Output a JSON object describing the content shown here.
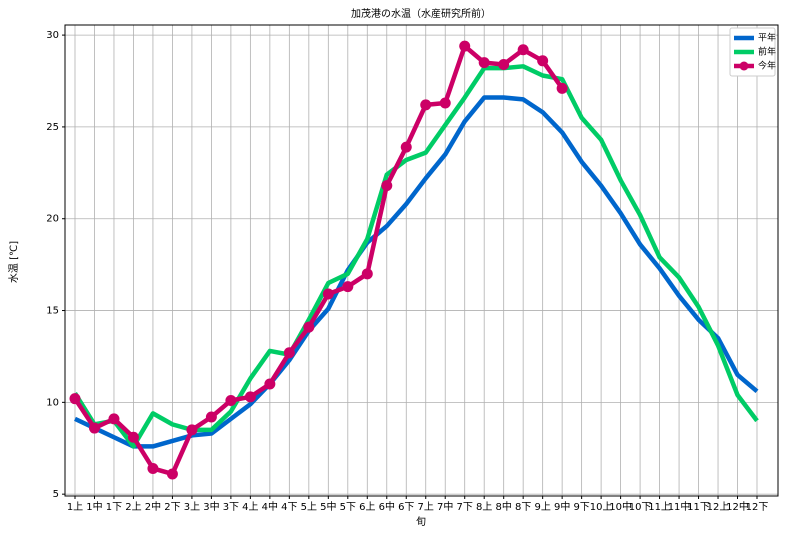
{
  "chart_data": {
    "type": "line",
    "title": "加茂港の水温（水産研究所前）",
    "xlabel": "旬",
    "ylabel": "水温 [℃]",
    "categories": [
      "1上",
      "1中",
      "1下",
      "2上",
      "2中",
      "2下",
      "3上",
      "3中",
      "3下",
      "4上",
      "4中",
      "4下",
      "5上",
      "5中",
      "5下",
      "6上",
      "6中",
      "6下",
      "7上",
      "7中",
      "7下",
      "8上",
      "8中",
      "8下",
      "9上",
      "9中",
      "9下",
      "10上",
      "10中",
      "10下",
      "11上",
      "11中",
      "11下",
      "12上",
      "12中",
      "12下"
    ],
    "series": [
      {
        "name": "平年",
        "color": "#0066cc",
        "markers": false,
        "values": [
          9.1,
          8.6,
          8.1,
          7.6,
          7.6,
          7.9,
          8.2,
          8.3,
          9.1,
          9.9,
          11.0,
          12.3,
          13.9,
          15.1,
          17.2,
          18.7,
          19.6,
          20.8,
          22.2,
          23.5,
          25.3,
          26.6,
          26.6,
          26.5,
          25.8,
          24.7,
          23.1,
          21.8,
          20.3,
          18.6,
          17.3,
          15.8,
          14.5,
          13.5,
          11.5,
          10.6
        ]
      },
      {
        "name": "前年",
        "color": "#00cc66",
        "markers": false,
        "values": [
          10.5,
          8.8,
          9.0,
          7.6,
          9.4,
          8.8,
          8.5,
          8.5,
          9.5,
          11.3,
          12.8,
          12.6,
          14.5,
          16.5,
          17.0,
          18.9,
          22.4,
          23.2,
          23.6,
          25.1,
          26.6,
          28.2,
          28.2,
          28.3,
          27.8,
          27.6,
          25.5,
          24.3,
          22.1,
          20.2,
          17.9,
          16.8,
          15.2,
          13.1,
          10.4,
          9.0
        ]
      },
      {
        "name": "今年",
        "color": "#cc0066",
        "markers": true,
        "values": [
          10.2,
          8.6,
          9.1,
          8.1,
          6.4,
          6.1,
          8.5,
          9.2,
          10.1,
          10.3,
          11.0,
          12.7,
          14.1,
          15.9,
          16.3,
          17.0,
          21.8,
          23.9,
          26.2,
          26.3,
          29.4,
          28.5,
          28.4,
          29.2,
          28.6,
          27.1,
          null,
          null,
          null,
          null,
          null,
          null,
          null,
          null,
          null,
          null
        ]
      }
    ],
    "ylim": [
      4.9,
      30.55
    ],
    "yticks": [
      5,
      10,
      15,
      20,
      25,
      30
    ],
    "grid": true,
    "legend": "upper right"
  }
}
